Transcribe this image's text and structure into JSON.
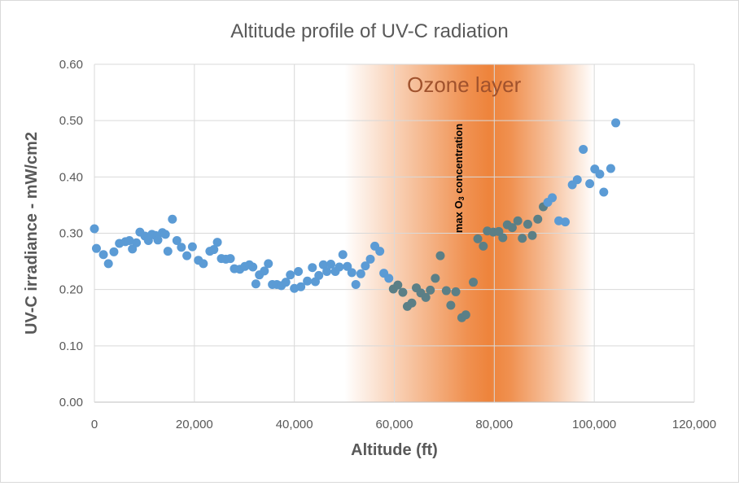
{
  "chart_data": {
    "type": "scatter",
    "title": "Altitude profile of UV-C radiation",
    "xlabel": "Altitude (ft)",
    "ylabel": "UV-C irradiance - mW/cm2",
    "xlim": [
      0,
      120000
    ],
    "ylim": [
      0,
      0.6
    ],
    "x_ticks": [
      0,
      20000,
      40000,
      60000,
      80000,
      100000,
      120000
    ],
    "x_tick_labels": [
      "0",
      "20,000",
      "40,000",
      "60,000",
      "80,000",
      "100,000",
      "120,000"
    ],
    "y_ticks": [
      0,
      0.1,
      0.2,
      0.3,
      0.4,
      0.5,
      0.6
    ],
    "y_tick_labels": [
      "0.00",
      "0.10",
      "0.20",
      "0.30",
      "0.40",
      "0.50",
      "0.60"
    ],
    "grid": true,
    "legend": "none",
    "marker_color": "#5b9bd5",
    "band": {
      "label": "Ozone layer",
      "x_start": 50000,
      "x_end": 100000,
      "center": 79000,
      "color": "#ed7d31"
    },
    "annotation": {
      "text_main": "max O",
      "text_sub": "3",
      "text_rest": " concentration",
      "x": 79000
    },
    "points": [
      [
        0,
        0.308
      ],
      [
        400,
        0.273
      ],
      [
        1800,
        0.262
      ],
      [
        2800,
        0.246
      ],
      [
        3900,
        0.267
      ],
      [
        5000,
        0.282
      ],
      [
        6200,
        0.285
      ],
      [
        7000,
        0.287
      ],
      [
        7600,
        0.272
      ],
      [
        8400,
        0.283
      ],
      [
        9100,
        0.302
      ],
      [
        10100,
        0.295
      ],
      [
        10800,
        0.287
      ],
      [
        11500,
        0.298
      ],
      [
        12200,
        0.296
      ],
      [
        12700,
        0.288
      ],
      [
        13600,
        0.301
      ],
      [
        14200,
        0.298
      ],
      [
        14700,
        0.268
      ],
      [
        15600,
        0.325
      ],
      [
        16500,
        0.287
      ],
      [
        17400,
        0.275
      ],
      [
        18500,
        0.26
      ],
      [
        19600,
        0.276
      ],
      [
        20800,
        0.252
      ],
      [
        21800,
        0.246
      ],
      [
        23100,
        0.268
      ],
      [
        23900,
        0.271
      ],
      [
        24600,
        0.284
      ],
      [
        25400,
        0.255
      ],
      [
        26300,
        0.254
      ],
      [
        27200,
        0.255
      ],
      [
        28000,
        0.237
      ],
      [
        29100,
        0.236
      ],
      [
        30100,
        0.241
      ],
      [
        31000,
        0.244
      ],
      [
        31700,
        0.24
      ],
      [
        32300,
        0.21
      ],
      [
        33000,
        0.226
      ],
      [
        34000,
        0.233
      ],
      [
        34800,
        0.246
      ],
      [
        35600,
        0.209
      ],
      [
        36500,
        0.209
      ],
      [
        37400,
        0.207
      ],
      [
        38300,
        0.213
      ],
      [
        39200,
        0.226
      ],
      [
        40000,
        0.202
      ],
      [
        40800,
        0.232
      ],
      [
        41300,
        0.205
      ],
      [
        42600,
        0.215
      ],
      [
        43600,
        0.239
      ],
      [
        44200,
        0.214
      ],
      [
        44900,
        0.225
      ],
      [
        45800,
        0.244
      ],
      [
        46500,
        0.232
      ],
      [
        47300,
        0.245
      ],
      [
        48200,
        0.232
      ],
      [
        49000,
        0.24
      ],
      [
        49700,
        0.262
      ],
      [
        50600,
        0.241
      ],
      [
        51500,
        0.23
      ],
      [
        52300,
        0.209
      ],
      [
        53300,
        0.228
      ],
      [
        54200,
        0.242
      ],
      [
        55200,
        0.254
      ],
      [
        56100,
        0.277
      ],
      [
        57100,
        0.268
      ],
      [
        57900,
        0.229
      ],
      [
        58900,
        0.22
      ],
      [
        59800,
        0.201
      ],
      [
        60700,
        0.208
      ],
      [
        61700,
        0.195
      ],
      [
        62600,
        0.17
      ],
      [
        63500,
        0.176
      ],
      [
        64400,
        0.203
      ],
      [
        65300,
        0.194
      ],
      [
        66300,
        0.186
      ],
      [
        67200,
        0.199
      ],
      [
        68200,
        0.22
      ],
      [
        69200,
        0.26
      ],
      [
        70400,
        0.198
      ],
      [
        71300,
        0.172
      ],
      [
        72300,
        0.196
      ],
      [
        73500,
        0.15
      ],
      [
        74300,
        0.155
      ],
      [
        75800,
        0.213
      ],
      [
        76700,
        0.29
      ],
      [
        77800,
        0.277
      ],
      [
        78600,
        0.304
      ],
      [
        79800,
        0.302
      ],
      [
        80900,
        0.303
      ],
      [
        81700,
        0.292
      ],
      [
        82600,
        0.315
      ],
      [
        83600,
        0.31
      ],
      [
        84700,
        0.322
      ],
      [
        85600,
        0.291
      ],
      [
        86700,
        0.316
      ],
      [
        87600,
        0.296
      ],
      [
        88700,
        0.325
      ],
      [
        89800,
        0.347
      ],
      [
        90700,
        0.355
      ],
      [
        91600,
        0.363
      ],
      [
        92900,
        0.322
      ],
      [
        94200,
        0.32
      ],
      [
        95600,
        0.386
      ],
      [
        96600,
        0.395
      ],
      [
        97800,
        0.449
      ],
      [
        99100,
        0.388
      ],
      [
        100100,
        0.414
      ],
      [
        101100,
        0.405
      ],
      [
        101900,
        0.373
      ],
      [
        103300,
        0.415
      ],
      [
        104300,
        0.496
      ]
    ]
  }
}
